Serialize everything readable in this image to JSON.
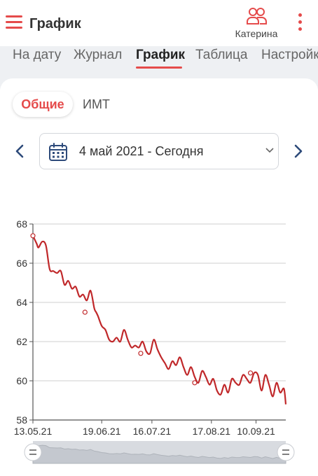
{
  "header": {
    "title": "График",
    "user_name": "Катерина"
  },
  "tabs": [
    {
      "label": "На дату"
    },
    {
      "label": "Журнал"
    },
    {
      "label": "График"
    },
    {
      "label": "Таблица"
    },
    {
      "label": "Настройки"
    }
  ],
  "active_tab": "График",
  "segments": {
    "general": "Общие",
    "bmi": "ИМТ"
  },
  "date_range": {
    "label": "4 май 2021 - Сегодня"
  },
  "colors": {
    "accent": "#e54b4b",
    "line": "#c0282a",
    "nav_arrow": "#2d4a7a"
  },
  "icons": {
    "menu": "hamburger-menu-icon",
    "user": "users-icon",
    "more": "kebab-menu-icon",
    "calendar": "calendar-icon",
    "dropdown": "chevron-down-icon",
    "prev": "chevron-left-icon",
    "next": "chevron-right-icon"
  },
  "chart_data": {
    "type": "line",
    "title": "",
    "xlabel": "",
    "ylabel": "",
    "ylim": [
      58,
      68
    ],
    "yticks": [
      58,
      60,
      62,
      64,
      66,
      68
    ],
    "xticks": [
      "13.05.21",
      "19.06.21",
      "16.07.21",
      "17.08.21",
      "10.09.21"
    ],
    "xtick_days": [
      0,
      37,
      64,
      96,
      120
    ],
    "x_range_days": [
      0,
      136
    ],
    "grid": true,
    "series": [
      {
        "days": [
          0,
          2,
          3,
          5,
          7,
          9,
          11,
          13,
          15,
          17,
          19,
          21,
          23,
          25,
          27,
          29,
          31,
          33,
          34,
          35,
          37,
          39,
          41,
          43,
          45,
          47,
          49,
          51,
          53,
          55,
          57,
          59,
          61,
          63,
          65,
          67,
          69,
          71,
          73,
          75,
          77,
          79,
          81,
          83,
          85,
          87,
          89,
          91,
          93,
          95,
          97,
          99,
          101,
          103,
          105,
          107,
          109,
          111,
          113,
          115,
          117,
          119,
          121,
          123,
          125,
          127,
          129,
          131,
          133,
          135,
          136
        ],
        "values": [
          67.4,
          67.0,
          66.8,
          67.1,
          66.9,
          65.7,
          65.6,
          65.5,
          65.6,
          64.9,
          65.1,
          64.7,
          64.8,
          64.3,
          64.4,
          64.1,
          64.6,
          63.7,
          63.5,
          63.3,
          62.8,
          62.6,
          62.1,
          62.0,
          62.2,
          62.0,
          62.6,
          62.1,
          61.7,
          61.8,
          61.7,
          62.0,
          61.5,
          61.4,
          62.1,
          61.6,
          61.2,
          60.9,
          60.6,
          61.0,
          60.8,
          61.2,
          60.7,
          60.3,
          60.7,
          60.2,
          59.9,
          60.5,
          60.2,
          59.8,
          60.1,
          59.5,
          59.3,
          59.8,
          59.4,
          60.1,
          59.9,
          59.8,
          60.3,
          60.1,
          59.9,
          60.4,
          60.3,
          59.5,
          60.3,
          59.8,
          59.2,
          59.9,
          59.4,
          59.6,
          58.8
        ]
      }
    ],
    "markers": [
      {
        "day": 0,
        "value": 67.4
      },
      {
        "day": 28,
        "value": 63.5
      },
      {
        "day": 58,
        "value": 61.4
      },
      {
        "day": 87,
        "value": 59.9
      },
      {
        "day": 117,
        "value": 60.4
      }
    ]
  }
}
